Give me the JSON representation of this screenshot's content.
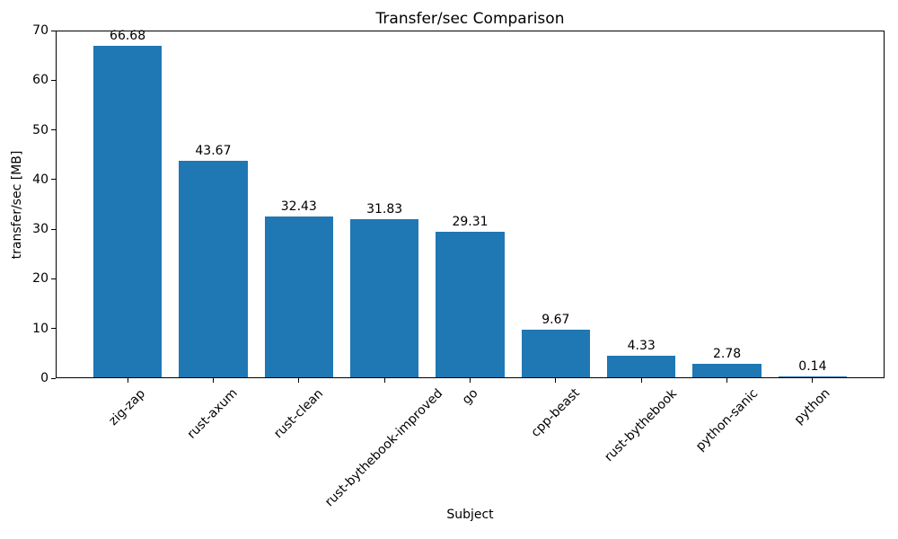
{
  "chart_data": {
    "type": "bar",
    "title": "Transfer/sec Comparison",
    "xlabel": "Subject",
    "ylabel": "transfer/sec [MB]",
    "categories": [
      "zig-zap",
      "rust-axum",
      "rust-clean",
      "rust-bythebook-improved",
      "go",
      "cpp-beast",
      "rust-bythebook",
      "python-sanic",
      "python"
    ],
    "values": [
      66.68,
      43.67,
      32.43,
      31.83,
      29.31,
      9.67,
      4.33,
      2.78,
      0.14
    ],
    "value_labels": [
      "66.68",
      "43.67",
      "32.43",
      "31.83",
      "29.31",
      "9.67",
      "4.33",
      "2.78",
      "0.14"
    ],
    "ylim": [
      0,
      70
    ],
    "yticks": [
      0,
      10,
      20,
      30,
      40,
      50,
      60,
      70
    ],
    "bar_color": "#1f77b4",
    "text_color": "#000000",
    "grid": false,
    "legend_position": "none",
    "xtick_rotation_deg": 45
  }
}
